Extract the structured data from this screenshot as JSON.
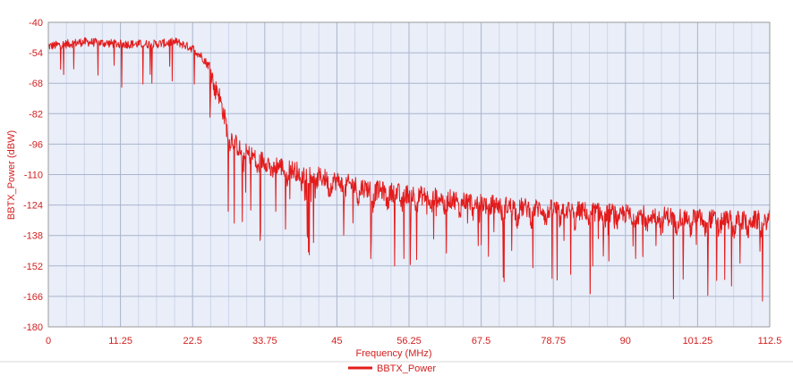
{
  "chart_data": {
    "type": "line",
    "title": "",
    "xlabel": "Frequency (MHz)",
    "ylabel": "BBTX_Power (dBW)",
    "xlim": [
      0,
      112.5
    ],
    "ylim": [
      -180,
      -40
    ],
    "xticks": [
      "0",
      "11.25",
      "22.5",
      "33.75",
      "45",
      "56.25",
      "67.5",
      "78.75",
      "90",
      "101.25",
      "112.5"
    ],
    "yticks": [
      "-40",
      "-54",
      "-68",
      "-82",
      "-96",
      "-110",
      "-124",
      "-138",
      "-152",
      "-166",
      "-180"
    ],
    "grid": true,
    "legend": {
      "position": "bottom-center",
      "entries": [
        "BBTX_Power"
      ]
    },
    "series": [
      {
        "name": "BBTX_Power",
        "color": "#e31b1b",
        "x": [
          0,
          5.6,
          11.25,
          16.9,
          20,
          22.5,
          24,
          25.5,
          26.5,
          27.5,
          28.5,
          30,
          33.75,
          39.4,
          45,
          50.6,
          56.25,
          61.9,
          67.5,
          73.1,
          78.75,
          84.4,
          90,
          95.6,
          101.25,
          106.9,
          112.5
        ],
        "y": [
          -51,
          -49,
          -50,
          -50,
          -49,
          -52,
          -56,
          -62,
          -72,
          -84,
          -93,
          -99,
          -104,
          -109,
          -113,
          -117,
          -119,
          -121,
          -123,
          -125,
          -126,
          -127,
          -128,
          -129,
          -130,
          -131,
          -131
        ]
      }
    ]
  }
}
